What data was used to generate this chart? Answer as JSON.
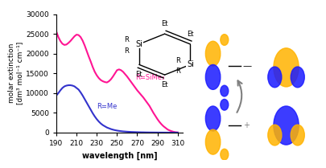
{
  "xlim": [
    190,
    315
  ],
  "ylim": [
    0,
    30000
  ],
  "xticks": [
    190,
    210,
    230,
    250,
    270,
    290,
    310
  ],
  "yticks": [
    0,
    5000,
    10000,
    15000,
    20000,
    25000,
    30000
  ],
  "xlabel": "wavelength [nm]",
  "ylabel": "molar extinction\n[dm³ mol⁻¹ cm⁻¹]",
  "label_sime3": "R=SiMe₃",
  "label_me": "R=Me",
  "color_sime3": "#ff1493",
  "color_me": "#3333cc",
  "background": "#ffffff",
  "red_x": [
    190,
    192,
    194,
    196,
    198,
    200,
    202,
    204,
    206,
    208,
    210,
    212,
    214,
    216,
    218,
    220,
    222,
    224,
    226,
    228,
    230,
    232,
    234,
    236,
    238,
    240,
    242,
    244,
    246,
    248,
    250,
    252,
    254,
    256,
    258,
    260,
    262,
    264,
    266,
    268,
    270,
    272,
    274,
    276,
    278,
    280,
    282,
    284,
    286,
    288,
    290,
    292,
    294,
    296,
    298,
    300,
    302,
    304,
    306,
    308,
    310
  ],
  "red_y": [
    25600,
    24200,
    23200,
    22500,
    22200,
    22300,
    22700,
    23200,
    23800,
    24400,
    24800,
    24700,
    24200,
    23300,
    22100,
    20700,
    19300,
    18000,
    16600,
    15400,
    14500,
    13800,
    13300,
    13000,
    12800,
    12700,
    13000,
    13500,
    14200,
    15000,
    15800,
    16000,
    15800,
    15400,
    14800,
    14200,
    13500,
    12800,
    12100,
    11400,
    10700,
    10100,
    9500,
    8900,
    8200,
    7500,
    6800,
    5900,
    5000,
    4200,
    3400,
    2700,
    2100,
    1600,
    1200,
    800,
    550,
    350,
    200,
    100,
    50
  ],
  "blue_x": [
    190,
    192,
    194,
    196,
    198,
    200,
    202,
    204,
    206,
    208,
    210,
    212,
    214,
    216,
    218,
    220,
    222,
    224,
    226,
    228,
    230,
    232,
    234,
    236,
    238,
    240,
    242,
    244,
    246,
    248,
    250,
    252,
    254,
    256,
    258,
    260,
    262,
    264,
    266,
    268,
    270,
    272,
    274,
    276,
    278,
    280,
    282,
    284,
    286,
    288,
    290,
    292,
    294,
    296,
    298,
    300,
    302,
    304,
    306,
    308,
    310
  ],
  "blue_y": [
    9400,
    10000,
    10700,
    11300,
    11700,
    11900,
    12000,
    12000,
    11900,
    11700,
    11300,
    10900,
    10200,
    9400,
    8500,
    7600,
    6700,
    5800,
    4900,
    4100,
    3400,
    2800,
    2300,
    1900,
    1600,
    1300,
    1100,
    900,
    750,
    620,
    520,
    440,
    370,
    310,
    270,
    230,
    200,
    170,
    150,
    130,
    110,
    95,
    80,
    70,
    60,
    50,
    45,
    40,
    35,
    30,
    25,
    20,
    18,
    15,
    12,
    10,
    8,
    6,
    5,
    4,
    3
  ]
}
